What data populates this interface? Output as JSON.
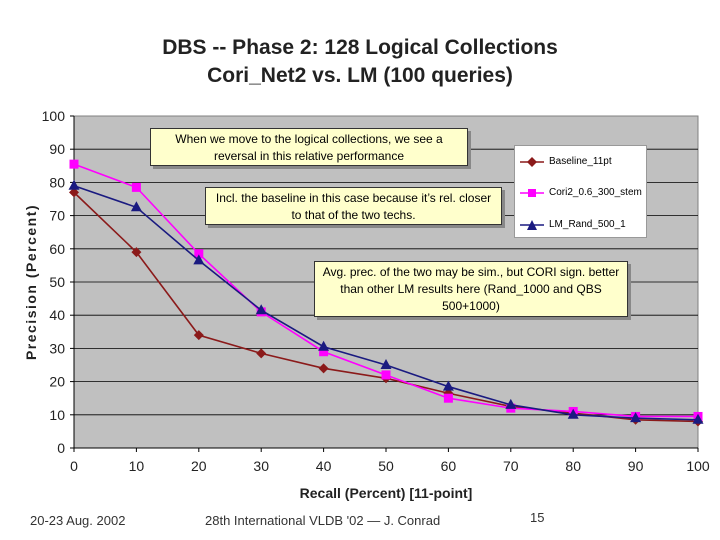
{
  "chart_data": {
    "type": "line",
    "title": "DBS -- Phase 2: 128 Logical Collections",
    "subtitle": "Cori_Net2 vs. LM (100 queries)",
    "xlabel": "Recall (Percent)  [11-point]",
    "ylabel": "Precision  (Percent)",
    "x": [
      0,
      10,
      20,
      30,
      40,
      50,
      60,
      70,
      80,
      90,
      100
    ],
    "xlim": [
      0,
      100
    ],
    "ylim": [
      0,
      100
    ],
    "xticks": [
      "0",
      "10",
      "20",
      "30",
      "40",
      "50",
      "60",
      "70",
      "80",
      "90",
      "100"
    ],
    "yticks": [
      "0",
      "10",
      "20",
      "30",
      "40",
      "50",
      "60",
      "70",
      "80",
      "90",
      "100"
    ],
    "grid": true,
    "legend_position": "right",
    "series": [
      {
        "name": "Baseline_11pt",
        "color": "#8b1a1a",
        "marker": "diamond",
        "values": [
          77,
          59,
          34,
          28.5,
          24,
          21,
          16.5,
          12.5,
          10.5,
          8.5,
          8
        ]
      },
      {
        "name": "Cori2_0.6_300_stem",
        "color": "#ff00ff",
        "marker": "square",
        "values": [
          85.5,
          78.5,
          58.5,
          41,
          29,
          22,
          15,
          12,
          11,
          9.5,
          9.5
        ]
      },
      {
        "name": "LM_Rand_500_1",
        "color": "#1a1a80",
        "marker": "triangle",
        "values": [
          79,
          72.5,
          56.5,
          41.5,
          30.5,
          25,
          18.5,
          13,
          10,
          9,
          8.5
        ]
      }
    ],
    "annotations": [
      "When we move to the logical collections, we see a reversal in this relative performance",
      "Incl. the baseline in this case because it’s rel. closer to that of  the two techs.",
      "Avg. prec. of the two may be sim., but CORI sign. better than other LM results here (Rand_1000 and QBS 500+1000)"
    ]
  },
  "footer": {
    "date": "20-23 Aug. 2002",
    "conference": "28th International VLDB '02  —  J. Conrad",
    "page_number": "15"
  }
}
